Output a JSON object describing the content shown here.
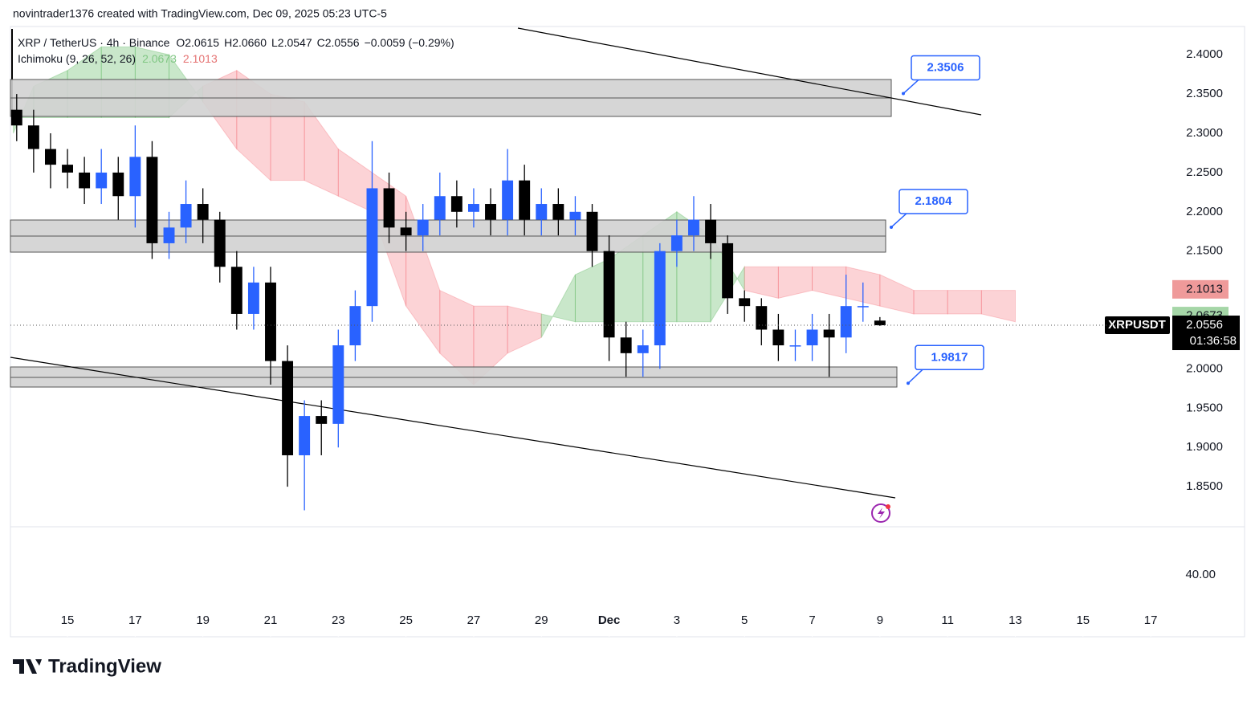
{
  "header": {
    "attribution": "novintrader1376 created with TradingView.com, Dec 09, 2025 05:23 UTC-5"
  },
  "chart_data": {
    "type": "candlestick",
    "title": "XRP / TetherUS · 4h · Binance",
    "ohlc_legend": [
      "O2.0615",
      "H2.0660",
      "L2.0547",
      "C2.0556",
      "−0.0059 (−0.29%)"
    ],
    "indicator": {
      "name": "Ichimoku (9, 26, 52, 26)",
      "values": [
        "2.0673",
        "2.1013"
      ]
    },
    "up_color": "#2962ff",
    "down_color": "#000000",
    "x": [
      -1.5,
      -1,
      -0.5,
      0,
      0.5,
      1,
      1.5,
      2,
      2.5,
      3,
      3.5,
      4,
      4.5,
      5,
      5.5,
      6,
      6.5,
      7,
      7.5,
      8,
      8.5,
      9,
      9.5,
      10,
      10.5,
      11,
      11.5,
      12,
      12.5,
      13,
      13.5,
      14,
      14.5,
      15,
      15.5,
      16,
      16.5,
      17,
      17.5,
      18,
      18.5,
      19,
      19.5,
      20,
      20.5,
      21,
      21.5,
      22,
      22.5,
      23,
      23.5,
      24
    ],
    "open": [
      2.33,
      2.31,
      2.28,
      2.26,
      2.25,
      2.23,
      2.25,
      2.22,
      2.27,
      2.16,
      2.18,
      2.21,
      2.19,
      2.13,
      2.07,
      2.11,
      2.01,
      1.89,
      1.94,
      1.93,
      2.03,
      2.08,
      2.23,
      2.18,
      2.17,
      2.19,
      2.22,
      2.2,
      2.21,
      2.19,
      2.24,
      2.19,
      2.21,
      2.19,
      2.2,
      2.15,
      2.04,
      2.02,
      2.03,
      2.15,
      2.17,
      2.19,
      2.16,
      2.09,
      2.08,
      2.05,
      2.03,
      2.03,
      2.05,
      2.04,
      2.08,
      2.0615
    ],
    "high": [
      2.35,
      2.33,
      2.3,
      2.28,
      2.27,
      2.28,
      2.27,
      2.31,
      2.29,
      2.2,
      2.24,
      2.23,
      2.2,
      2.15,
      2.13,
      2.13,
      2.03,
      1.96,
      1.96,
      2.05,
      2.1,
      2.29,
      2.25,
      2.2,
      2.21,
      2.25,
      2.24,
      2.23,
      2.23,
      2.28,
      2.26,
      2.23,
      2.23,
      2.22,
      2.21,
      2.17,
      2.06,
      2.05,
      2.16,
      2.19,
      2.22,
      2.21,
      2.17,
      2.1,
      2.09,
      2.07,
      2.05,
      2.07,
      2.07,
      2.12,
      2.11,
      2.066
    ],
    "low": [
      2.29,
      2.25,
      2.23,
      2.23,
      2.21,
      2.21,
      2.19,
      2.18,
      2.14,
      2.14,
      2.16,
      2.16,
      2.11,
      2.05,
      2.05,
      1.98,
      1.85,
      1.82,
      1.89,
      1.9,
      2.01,
      2.06,
      2.16,
      2.15,
      2.15,
      2.17,
      2.18,
      2.18,
      2.17,
      2.17,
      2.17,
      2.17,
      2.17,
      2.17,
      2.13,
      2.01,
      1.99,
      1.99,
      2.0,
      2.13,
      2.15,
      2.14,
      2.07,
      2.06,
      2.03,
      2.01,
      2.01,
      2.01,
      1.99,
      2.02,
      2.06,
      2.0547
    ],
    "close": [
      2.31,
      2.28,
      2.26,
      2.25,
      2.23,
      2.25,
      2.22,
      2.27,
      2.16,
      2.18,
      2.21,
      2.19,
      2.13,
      2.07,
      2.11,
      2.01,
      1.89,
      1.94,
      1.93,
      2.03,
      2.08,
      2.23,
      2.18,
      2.17,
      2.19,
      2.22,
      2.2,
      2.21,
      2.19,
      2.24,
      2.19,
      2.21,
      2.19,
      2.2,
      2.15,
      2.04,
      2.02,
      2.03,
      2.15,
      2.17,
      2.19,
      2.16,
      2.09,
      2.08,
      2.05,
      2.03,
      2.03,
      2.05,
      2.04,
      2.08,
      2.08,
      2.0556
    ],
    "cloud": {
      "x": [
        -1.6,
        -1,
        0,
        1,
        2,
        3,
        4,
        5,
        6,
        7,
        8,
        9,
        10,
        11,
        12,
        13,
        14,
        15,
        16,
        17,
        18,
        19,
        20,
        21,
        22,
        23,
        24,
        25,
        26,
        27,
        28
      ],
      "span_a": [
        2.3,
        2.36,
        2.38,
        2.41,
        2.41,
        2.4,
        2.34,
        2.28,
        2.24,
        2.24,
        2.22,
        2.2,
        2.08,
        2.02,
        1.98,
        2.02,
        2.04,
        2.12,
        2.14,
        2.17,
        2.2,
        2.17,
        2.1,
        2.09,
        2.1,
        2.09,
        2.08,
        2.07,
        2.07,
        2.07,
        2.06
      ],
      "span_b": [
        2.32,
        2.32,
        2.32,
        2.32,
        2.32,
        2.32,
        2.36,
        2.38,
        2.35,
        2.34,
        2.28,
        2.25,
        2.22,
        2.1,
        2.08,
        2.08,
        2.07,
        2.06,
        2.06,
        2.06,
        2.06,
        2.06,
        2.13,
        2.13,
        2.13,
        2.13,
        2.12,
        2.1,
        2.1,
        2.1,
        2.1
      ],
      "bull_color": "rgba(76,175,80,0.3)",
      "bear_color": "rgba(242,54,69,0.22)"
    },
    "xlim": [
      -1.685,
      32.4
    ],
    "xticks": [
      {
        "value": 0,
        "label": "15"
      },
      {
        "value": 2,
        "label": "17"
      },
      {
        "value": 4,
        "label": "19"
      },
      {
        "value": 6,
        "label": "21"
      },
      {
        "value": 8,
        "label": "23"
      },
      {
        "value": 10,
        "label": "25"
      },
      {
        "value": 12,
        "label": "27"
      },
      {
        "value": 14,
        "label": "29"
      },
      {
        "value": 16,
        "label": "Dec"
      },
      {
        "value": 18,
        "label": "3"
      },
      {
        "value": 20,
        "label": "5"
      },
      {
        "value": 22,
        "label": "7"
      },
      {
        "value": 24,
        "label": "9"
      },
      {
        "value": 26,
        "label": "11"
      },
      {
        "value": 28,
        "label": "13"
      },
      {
        "value": 30,
        "label": "15"
      },
      {
        "value": 32,
        "label": "17"
      }
    ],
    "ylim": [
      1.8,
      2.436
    ],
    "yticks": [
      {
        "value": 2.4,
        "label": "2.4000"
      },
      {
        "value": 2.35,
        "label": "2.3500"
      },
      {
        "value": 2.3,
        "label": "2.3000"
      },
      {
        "value": 2.25,
        "label": "2.2500"
      },
      {
        "value": 2.2,
        "label": "2.2000"
      },
      {
        "value": 2.15,
        "label": "2.1500"
      },
      {
        "value": 2.1,
        "label": "2.1000"
      },
      {
        "value": 2.05,
        "label": "2.0500"
      },
      {
        "value": 2,
        "label": "2.0000"
      },
      {
        "value": 1.95,
        "label": "1.9500"
      },
      {
        "value": 1.9,
        "label": "1.9000"
      },
      {
        "value": 1.85,
        "label": "1.8500"
      }
    ],
    "annotations": [
      2.3506,
      2.1804,
      1.9817
    ],
    "price_labels": [
      {
        "value": 2.1013,
        "color": "#ef9a9a"
      },
      {
        "value": 2.0673,
        "color": "#a5d6a7"
      }
    ],
    "last_price": 2.0556,
    "symbol": "XRPUSDT",
    "countdown": "01:36:58",
    "lower_pane_label": "40.00"
  },
  "footer": {
    "logo": "TradingView"
  }
}
